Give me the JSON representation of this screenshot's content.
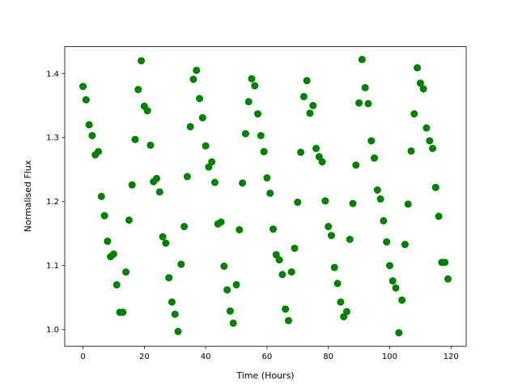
{
  "chart_data": {
    "type": "scatter",
    "xlabel": "Time (Hours)",
    "ylabel": "Normalised Flux",
    "color": "#008000",
    "x": [
      0,
      1,
      2,
      3,
      4,
      5,
      6,
      7,
      8,
      9,
      10,
      11,
      12,
      13,
      14,
      15,
      16,
      17,
      18,
      19,
      20,
      21,
      22,
      23,
      24,
      25,
      26,
      27,
      28,
      29,
      30,
      31,
      32,
      33,
      34,
      35,
      36,
      37,
      38,
      39,
      40,
      41,
      42,
      43,
      44,
      45,
      46,
      47,
      48,
      49,
      50,
      51,
      52,
      53,
      54,
      55,
      56,
      57,
      58,
      59,
      60,
      61,
      62,
      63,
      64,
      65,
      66,
      67,
      68,
      69,
      70,
      71,
      72,
      73,
      74,
      75,
      76,
      77,
      78,
      79,
      80,
      81,
      82,
      83,
      84,
      85,
      86,
      87,
      88,
      89,
      90,
      91,
      92,
      93,
      94,
      95,
      96,
      97,
      98,
      99,
      100,
      101,
      102,
      103,
      104,
      105,
      106,
      107,
      108,
      109,
      110,
      111,
      112,
      113,
      114,
      115,
      116,
      117,
      118,
      119
    ],
    "values": [
      1.38,
      1.359,
      1.32,
      1.303,
      1.273,
      1.278,
      1.208,
      1.178,
      1.138,
      1.114,
      1.118,
      1.07,
      1.027,
      1.027,
      1.09,
      1.171,
      1.226,
      1.297,
      1.375,
      1.42,
      1.349,
      1.342,
      1.288,
      1.231,
      1.236,
      1.215,
      1.145,
      1.135,
      1.081,
      1.043,
      1.024,
      0.997,
      1.102,
      1.161,
      1.239,
      1.317,
      1.391,
      1.405,
      1.361,
      1.331,
      1.287,
      1.254,
      1.262,
      1.23,
      1.165,
      1.168,
      1.099,
      1.062,
      1.029,
      1.01,
      1.07,
      1.156,
      1.229,
      1.306,
      1.356,
      1.392,
      1.381,
      1.337,
      1.303,
      1.278,
      1.237,
      1.213,
      1.157,
      1.117,
      1.109,
      1.086,
      1.032,
      1.014,
      1.09,
      1.127,
      1.199,
      1.277,
      1.364,
      1.389,
      1.338,
      1.35,
      1.283,
      1.27,
      1.262,
      1.201,
      1.161,
      1.147,
      1.097,
      1.072,
      1.043,
      1.02,
      1.028,
      1.141,
      1.197,
      1.257,
      1.354,
      1.422,
      1.378,
      1.353,
      1.295,
      1.268,
      1.218,
      1.204,
      1.17,
      1.137,
      1.1,
      1.076,
      1.065,
      0.995,
      1.046,
      1.133,
      1.196,
      1.279,
      1.337,
      1.409,
      1.385,
      1.376,
      1.315,
      1.295,
      1.283,
      1.222,
      1.177,
      1.105,
      1.105,
      1.079
    ],
    "xlim": [
      -5.95,
      124.95
    ],
    "ylim": [
      0.974,
      1.442
    ],
    "xticks": [
      0,
      20,
      40,
      60,
      80,
      100,
      120
    ],
    "yticks": [
      {
        "value": 1.0,
        "label": "1.0"
      },
      1.1,
      1.2,
      1.3,
      1.4
    ]
  }
}
